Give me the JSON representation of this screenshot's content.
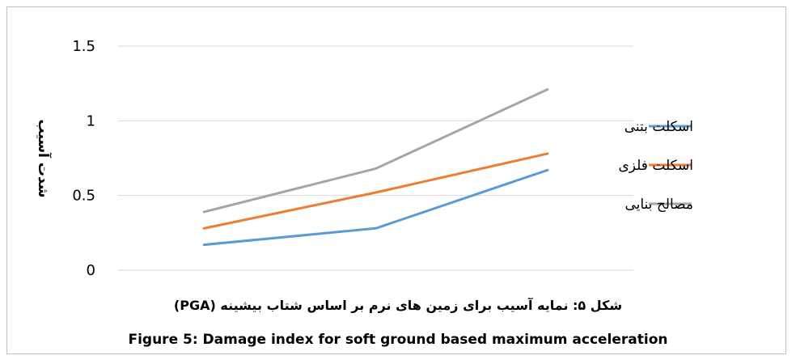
{
  "chart_data": {
    "type": "line",
    "categories": [
      "",
      "",
      ""
    ],
    "ylabel": "شدت آسیب",
    "ylim": [
      0,
      1.5
    ],
    "yticks": [
      "0",
      "0.5",
      "1",
      "1.5"
    ],
    "ytick_values": [
      0,
      0.5,
      1,
      1.5
    ],
    "grid": true,
    "legend_position": "right",
    "series": [
      {
        "name": "اسکلت بتنی",
        "color": "#5b9bd5",
        "values": [
          0.17,
          0.28,
          0.67
        ]
      },
      {
        "name": "اسکلت فلزی",
        "color": "#ed7d31",
        "values": [
          0.28,
          0.52,
          0.78
        ]
      },
      {
        "name": "مصالح بنایی",
        "color": "#a5a5a5",
        "values": [
          0.39,
          0.68,
          1.21
        ]
      }
    ]
  },
  "caption": {
    "persian": "شکل ۵: نمایه آسیب برای زمین های نرم بر اساس شتاب بیشینه (PGA)",
    "english": "Figure 5: Damage index for soft ground based maximum acceleration"
  }
}
